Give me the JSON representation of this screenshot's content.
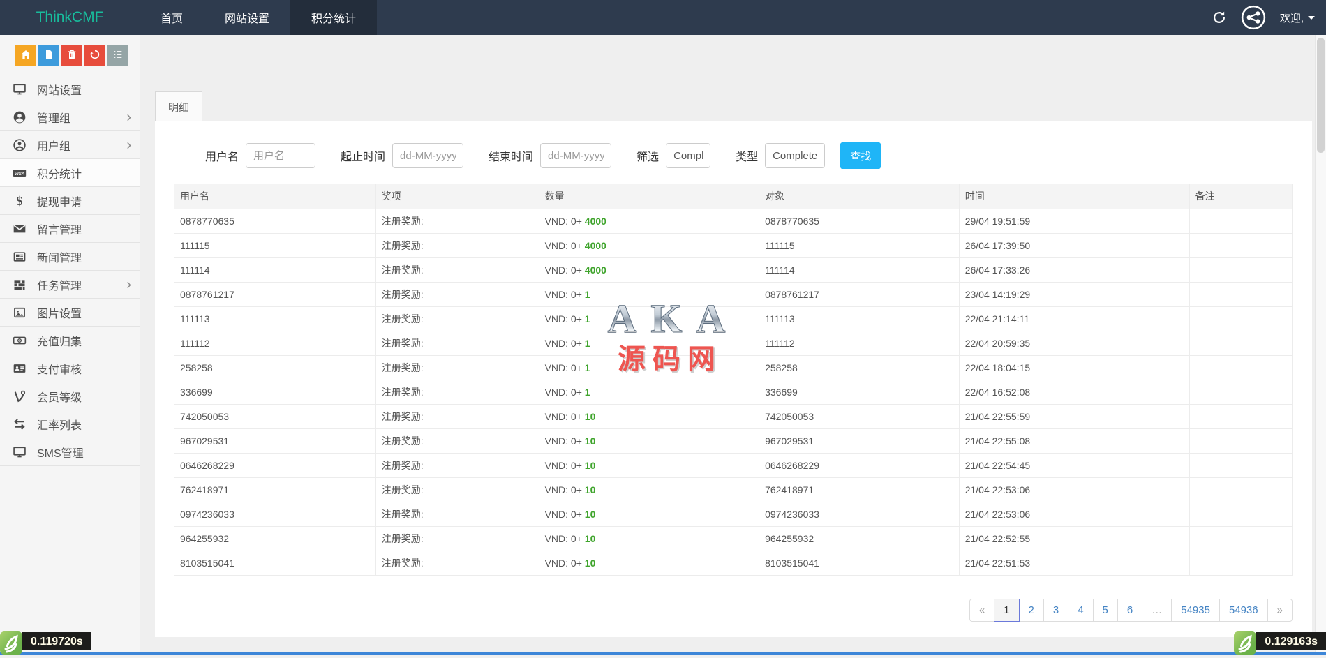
{
  "navbar": {
    "brand": "ThinkCMF",
    "items": [
      {
        "label": "首页",
        "active": false
      },
      {
        "label": "网站设置",
        "active": false
      },
      {
        "label": "积分统计",
        "active": true
      }
    ],
    "welcome": "欢迎,"
  },
  "sidebar": {
    "toolbar": [
      {
        "icon": "home-icon",
        "color": "#f5a623"
      },
      {
        "icon": "file-icon",
        "color": "#3d9bdc"
      },
      {
        "icon": "trash-icon",
        "color": "#e74c3c"
      },
      {
        "icon": "recycle-icon",
        "color": "#e74c3c"
      },
      {
        "icon": "list-icon",
        "color": "#95a5a6"
      }
    ],
    "items": [
      {
        "label": "网站设置",
        "icon": "desktop-icon",
        "chevron": false,
        "active": false
      },
      {
        "label": "管理组",
        "icon": "user-circle-icon",
        "chevron": true,
        "active": false
      },
      {
        "label": "用户组",
        "icon": "user-circle-o-icon",
        "chevron": true,
        "active": false
      },
      {
        "label": "积分统计",
        "icon": "visa-icon",
        "chevron": false,
        "active": true
      },
      {
        "label": "提现申请",
        "icon": "dollar-icon",
        "chevron": false,
        "active": false
      },
      {
        "label": "留言管理",
        "icon": "envelope-icon",
        "chevron": false,
        "active": false
      },
      {
        "label": "新闻管理",
        "icon": "newspaper-icon",
        "chevron": false,
        "active": false
      },
      {
        "label": "任务管理",
        "icon": "tasks-icon",
        "chevron": true,
        "active": false
      },
      {
        "label": "图片设置",
        "icon": "image-icon",
        "chevron": false,
        "active": false
      },
      {
        "label": "充值归集",
        "icon": "money-icon",
        "chevron": false,
        "active": false
      },
      {
        "label": "支付审核",
        "icon": "id-card-icon",
        "chevron": false,
        "active": false
      },
      {
        "label": "会员等级",
        "icon": "vine-icon",
        "chevron": false,
        "active": false
      },
      {
        "label": "汇率列表",
        "icon": "exchange-icon",
        "chevron": false,
        "active": false
      },
      {
        "label": "SMS管理",
        "icon": "desktop-icon",
        "chevron": false,
        "active": false
      }
    ]
  },
  "tab": {
    "label": "明细"
  },
  "filters": {
    "username_label": "用户名",
    "username_placeholder": "用户名",
    "start_label": "起止时间",
    "start_placeholder": "dd-MM-yyyy",
    "end_label": "结束时间",
    "end_placeholder": "dd-MM-yyyy",
    "filter_label": "筛选",
    "filter_value": "Comple",
    "type_label": "类型",
    "type_value": "Complete",
    "search_button": "查找"
  },
  "table": {
    "columns": [
      "用户名",
      "奖项",
      "数量",
      "对象",
      "时间",
      "备注"
    ],
    "amount_prefix": "VND: 0+",
    "rows": [
      {
        "user": "0878770635",
        "award": "注册奖励:",
        "amount": "4000",
        "target": "0878770635",
        "time": "29/04 19:51:59",
        "note": ""
      },
      {
        "user": "111115",
        "award": "注册奖励:",
        "amount": "4000",
        "target": "111115",
        "time": "26/04 17:39:50",
        "note": ""
      },
      {
        "user": "111114",
        "award": "注册奖励:",
        "amount": "4000",
        "target": "111114",
        "time": "26/04 17:33:26",
        "note": ""
      },
      {
        "user": "0878761217",
        "award": "注册奖励:",
        "amount": "1",
        "target": "0878761217",
        "time": "23/04 14:19:29",
        "note": ""
      },
      {
        "user": "111113",
        "award": "注册奖励:",
        "amount": "1",
        "target": "111113",
        "time": "22/04 21:14:11",
        "note": ""
      },
      {
        "user": "111112",
        "award": "注册奖励:",
        "amount": "1",
        "target": "111112",
        "time": "22/04 20:59:35",
        "note": ""
      },
      {
        "user": "258258",
        "award": "注册奖励:",
        "amount": "1",
        "target": "258258",
        "time": "22/04 18:04:15",
        "note": ""
      },
      {
        "user": "336699",
        "award": "注册奖励:",
        "amount": "1",
        "target": "336699",
        "time": "22/04 16:52:08",
        "note": ""
      },
      {
        "user": "742050053",
        "award": "注册奖励:",
        "amount": "10",
        "target": "742050053",
        "time": "21/04 22:55:59",
        "note": ""
      },
      {
        "user": "967029531",
        "award": "注册奖励:",
        "amount": "10",
        "target": "967029531",
        "time": "21/04 22:55:08",
        "note": ""
      },
      {
        "user": "0646268229",
        "award": "注册奖励:",
        "amount": "10",
        "target": "0646268229",
        "time": "21/04 22:54:45",
        "note": ""
      },
      {
        "user": "762418971",
        "award": "注册奖励:",
        "amount": "10",
        "target": "762418971",
        "time": "21/04 22:53:06",
        "note": ""
      },
      {
        "user": "0974236033",
        "award": "注册奖励:",
        "amount": "10",
        "target": "0974236033",
        "time": "21/04 22:53:06",
        "note": ""
      },
      {
        "user": "964255932",
        "award": "注册奖励:",
        "amount": "10",
        "target": "964255932",
        "time": "21/04 22:52:55",
        "note": ""
      },
      {
        "user": "8103515041",
        "award": "注册奖励:",
        "amount": "10",
        "target": "8103515041",
        "time": "21/04 22:51:53",
        "note": ""
      }
    ]
  },
  "pagination": [
    {
      "label": "«",
      "active": false,
      "muted": true
    },
    {
      "label": "1",
      "active": true,
      "muted": false
    },
    {
      "label": "2",
      "active": false,
      "muted": false
    },
    {
      "label": "3",
      "active": false,
      "muted": false
    },
    {
      "label": "4",
      "active": false,
      "muted": false
    },
    {
      "label": "5",
      "active": false,
      "muted": false
    },
    {
      "label": "6",
      "active": false,
      "muted": false
    },
    {
      "label": "…",
      "active": false,
      "muted": true
    },
    {
      "label": "54935",
      "active": false,
      "muted": false
    },
    {
      "label": "54936",
      "active": false,
      "muted": false
    },
    {
      "label": "»",
      "active": false,
      "muted": true
    }
  ],
  "watermark": {
    "line1": "AKA",
    "line2": "源码网"
  },
  "footer": {
    "left_time": "0.119720s",
    "right_time": "0.129163s"
  },
  "colors": {
    "navbar": "#2e3b4e",
    "navbar_active": "#232d3b",
    "brand": "#18bc9c",
    "search_button": "#1fb5f7",
    "amount_green": "#3fa42c",
    "pagination_link": "#4584c4"
  }
}
